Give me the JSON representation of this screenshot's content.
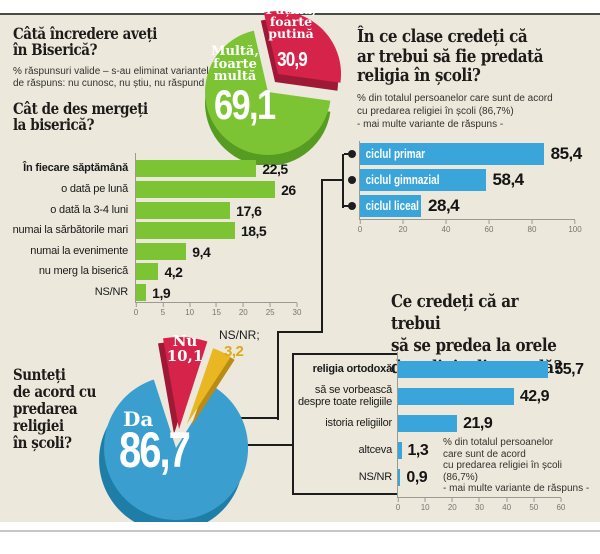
{
  "colors": {
    "background": "#ece8dc",
    "green": "#7cc433",
    "green_dark": "#569b22",
    "red": "#d52349",
    "red_dark": "#9e1936",
    "yellow": "#e9b722",
    "yellow_dark": "#ba8c15",
    "blue_bar": "#3aa5da",
    "blue_pie": "#3a9fce",
    "blue_dark": "#1f7ea7",
    "ink": "#1d1c1a"
  },
  "sec_trust": {
    "title": "Câtă încredere aveți\nîn Biserică?",
    "note": "% răspunsuri valide – s-au eliminat variantele\nde răspuns: nu cunosc, nu știu, nu răspund",
    "pie": {
      "major_label": "Multă,\nfoarte\nmultă",
      "major_value": "69,1",
      "minor_label": "Puțină,\nfoarte\nputină",
      "minor_value": "30,9"
    }
  },
  "sec_frequency": {
    "title": "Cât de des mergeți\nla biserică?",
    "rows": [
      {
        "label": "În fiecare săptămână",
        "display": "22,5",
        "value": 22.5
      },
      {
        "label": "o dată pe lună",
        "display": "26",
        "value": 26
      },
      {
        "label": "o dată la 3-4 luni",
        "display": "17,6",
        "value": 17.6
      },
      {
        "label": "numai la sărbătorile mari",
        "display": "18,5",
        "value": 18.5
      },
      {
        "label": "numai la evenimente",
        "display": "9,4",
        "value": 9.4
      },
      {
        "label": "nu merg la biserică",
        "display": "4,2",
        "value": 4.2
      },
      {
        "label": "NS/NR",
        "display": "1,9",
        "value": 1.9
      }
    ],
    "ticks": [
      "0",
      "5",
      "10",
      "15",
      "20",
      "25",
      "30"
    ]
  },
  "sec_classes": {
    "title": "În ce clase credeți că\nar trebui să fie predată\nreligia în școli?",
    "note": "% din totalul persoanelor care sunt de acord\ncu predarea religiei în școli (86,7%)\n- mai multe variante de răspuns -",
    "rows": [
      {
        "label": "ciclul primar",
        "display": "85,4",
        "value": 85.4
      },
      {
        "label": "ciclul gimnazial",
        "display": "58,4",
        "value": 58.4
      },
      {
        "label": "ciclul liceal",
        "display": "28,4",
        "value": 28.4
      }
    ],
    "ticks": [
      "0",
      "20",
      "40",
      "60",
      "80",
      "100"
    ]
  },
  "sec_agree": {
    "title": "Sunteți\nde acord cu\npredarea\nreligiei\nîn școli?",
    "pie": {
      "da_label": "Da",
      "da_value": "86,7",
      "nu_label": "Nu\n10,1",
      "nsnr_label": "NS/NR;",
      "nsnr_value": "3,2"
    }
  },
  "sec_subjects": {
    "title": "Ce credeți că ar trebui\nsă se predea la orele\nde religie din școală?",
    "note": "% din totalul persoanelor\ncare sunt de acord\ncu predarea religiei în școli (86,7%)\n- mai multe variante de răspuns -",
    "rows": [
      {
        "label": "religia ortodoxă",
        "display": "55,7",
        "value": 55.7
      },
      {
        "label": "să se vorbească\ndespre toate religiile",
        "display": "42,9",
        "value": 42.9
      },
      {
        "label": "istoria religiilor",
        "display": "21,9",
        "value": 21.9
      },
      {
        "label": "altceva",
        "display": "1,3",
        "value": 1.3
      },
      {
        "label": "NS/NR",
        "display": "0,9",
        "value": 0.9
      }
    ],
    "ticks": [
      "0",
      "10",
      "20",
      "30",
      "40",
      "50",
      "60"
    ]
  },
  "chart_data": [
    {
      "type": "pie",
      "title": "Câtă încredere aveți în Biserică?",
      "labels": [
        "Multă, foarte multă",
        "Puțină, foarte puțină"
      ],
      "values": [
        69.1,
        30.9
      ],
      "colors": [
        "#7cc433",
        "#d52349"
      ],
      "note": "% răspunsuri valide – s-au eliminat variantele de răspuns: nu cunosc, nu știu, nu răspund"
    },
    {
      "type": "bar",
      "orientation": "horizontal",
      "title": "Cât de des mergeți la biserică?",
      "categories": [
        "În fiecare săptămână",
        "o dată pe lună",
        "o dată la 3-4 luni",
        "numai la sărbătorile mari",
        "numai la evenimente",
        "nu merg la biserică",
        "NS/NR"
      ],
      "values": [
        22.5,
        26,
        17.6,
        18.5,
        9.4,
        4.2,
        1.9
      ],
      "xlim": [
        0,
        30
      ],
      "color": "#7cc433"
    },
    {
      "type": "bar",
      "orientation": "horizontal",
      "title": "În ce clase credeți că ar trebui să fie predată religia în școli?",
      "categories": [
        "ciclul primar",
        "ciclul gimnazial",
        "ciclul liceal"
      ],
      "values": [
        85.4,
        58.4,
        28.4
      ],
      "xlim": [
        0,
        100
      ],
      "color": "#3aa5da",
      "note": "% din totalul persoanelor care sunt de acord cu predarea religiei în școli (86,7%) - mai multe variante de răspuns -"
    },
    {
      "type": "pie",
      "title": "Sunteți de acord cu predarea religiei în școli?",
      "labels": [
        "Da",
        "Nu",
        "NS/NR"
      ],
      "values": [
        86.7,
        10.1,
        3.2
      ],
      "colors": [
        "#3a9fce",
        "#d52349",
        "#e9b722"
      ]
    },
    {
      "type": "bar",
      "orientation": "horizontal",
      "title": "Ce credeți că ar trebui să se predea la orele de religie din școală?",
      "categories": [
        "religia ortodoxă",
        "să se vorbească despre toate religiile",
        "istoria religiilor",
        "altceva",
        "NS/NR"
      ],
      "values": [
        55.7,
        42.9,
        21.9,
        1.3,
        0.9
      ],
      "xlim": [
        0,
        60
      ],
      "color": "#3aa5da",
      "note": "% din totalul persoanelor care sunt de acord cu predarea religiei în școli (86,7%) - mai multe variante de răspuns -"
    }
  ]
}
